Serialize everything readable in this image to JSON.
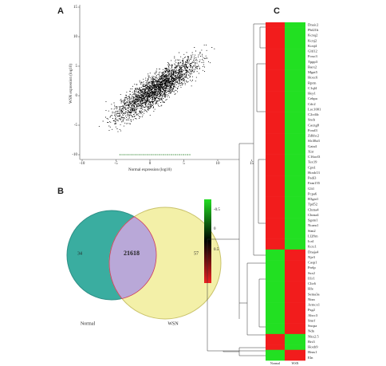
{
  "panel_a": {
    "label": "A",
    "x_label": "Normal expression (log10)",
    "y_label": "WSN expression (log10)",
    "xticks": [
      -10,
      -5,
      0,
      5,
      10,
      15
    ],
    "yticks": [
      15,
      10,
      5,
      0,
      -5,
      -10
    ]
  },
  "panel_b": {
    "label": "B",
    "left_only": "34",
    "both": "21618",
    "right_only": "57",
    "left_name": "Normal",
    "right_name": "WSN",
    "colorbar_ticks": [
      "-0.5",
      "0",
      "0.5"
    ]
  },
  "panel_c": {
    "label": "C",
    "columns": [
      "Normal",
      "WSN"
    ],
    "genes": [
      "Dnaic2",
      "Pbf21b",
      "Kcnq2",
      "Kcnj2",
      "Kcnj4",
      "Gltl12",
      "Foxo3",
      "Tppp3",
      "Barx2",
      "Mgat5",
      "Hoxc6",
      "Rprm",
      "C1ql4",
      "Hey1",
      "Cebpa",
      "Cdc2",
      "Loc1001",
      "C2cd4c",
      "Sncb",
      "Cacng8",
      "Foxd3",
      "Zdhhc2",
      "Slc38a3",
      "Gata4",
      "Xirr",
      "C16orf3",
      "Tex19",
      "Cpn1",
      "Hoxb13",
      "Padi3",
      "Fam155",
      "Gli1",
      "Pcpa6",
      "B3gat1",
      "Tpd52",
      "Chrna4",
      "Chrna4",
      "Sgsm1",
      "Ncam1",
      "Stm2",
      "Ll28rn",
      "Ica1",
      "Kctc1",
      "Dnaja4",
      "Nje3",
      "Casp1",
      "Prelp",
      "Ssx2",
      "Il1r1",
      "Clic6",
      "Hfe",
      "Sema3a",
      "Ntsn",
      "Armcx1",
      "Psg2",
      "Abcc3",
      "Smrf",
      "Sncpa",
      "Ndn",
      "Nkx2.5",
      "Brs3",
      "Hoxb9",
      "Hmx1",
      "Eln"
    ]
  }
}
